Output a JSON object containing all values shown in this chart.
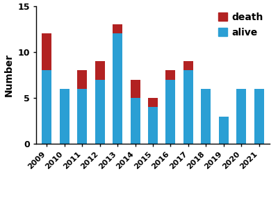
{
  "years": [
    "2009",
    "2010",
    "2011",
    "2012",
    "2013",
    "2014",
    "2015",
    "2016",
    "2017",
    "2018",
    "2019",
    "2020",
    "2021"
  ],
  "alive": [
    8,
    6,
    6,
    7,
    12,
    5,
    4,
    7,
    8,
    6,
    3,
    6,
    6
  ],
  "death": [
    4,
    0,
    2,
    2,
    1,
    2,
    1,
    1,
    1,
    0,
    0,
    0,
    0
  ],
  "alive_color": "#2B9FD4",
  "death_color": "#B22222",
  "ylabel": "Number",
  "ylim": [
    0,
    15
  ],
  "yticks": [
    0,
    5,
    10,
    15
  ],
  "legend_death": "death",
  "legend_alive": "alive",
  "bar_width": 0.55
}
